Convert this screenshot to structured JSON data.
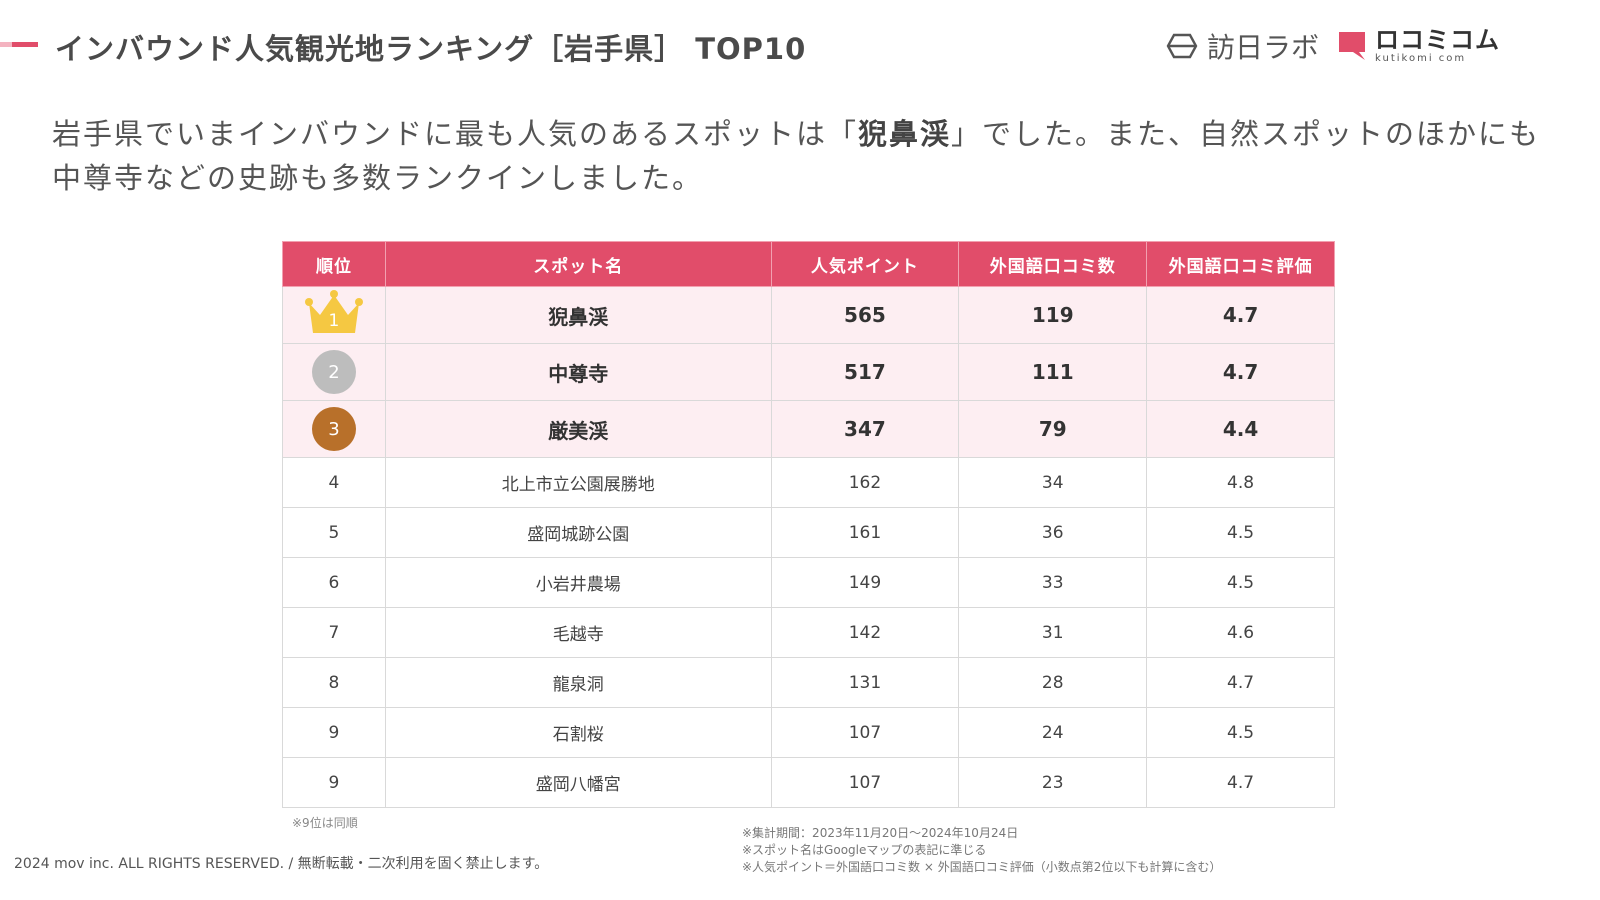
{
  "header": {
    "title": "インバウンド人気観光地ランキング［岩手県］ TOP10",
    "logo_homon": "訪日ラボ",
    "logo_kuchikomi": "ロコミコム",
    "logo_kuchikomi_sub": "kutikomi com"
  },
  "lead": {
    "text_before": "岩手県でいまインバウンドに最も人気のあるスポットは「",
    "highlight": "猊鼻渓",
    "text_after": "」でした。また、自然スポットのほかにも中尊寺などの史跡も多数ランクインしました。"
  },
  "table": {
    "headers": [
      "順位",
      "スポット名",
      "人気ポイント",
      "外国語口コミ数",
      "外国語口コミ評価"
    ],
    "rows": [
      {
        "rank": "1",
        "name": "猊鼻渓",
        "points": "565",
        "count": "119",
        "rating": "4.7"
      },
      {
        "rank": "2",
        "name": "中尊寺",
        "points": "517",
        "count": "111",
        "rating": "4.7"
      },
      {
        "rank": "3",
        "name": "厳美渓",
        "points": "347",
        "count": "79",
        "rating": "4.4"
      },
      {
        "rank": "4",
        "name": "北上市立公園展勝地",
        "points": "162",
        "count": "34",
        "rating": "4.8"
      },
      {
        "rank": "5",
        "name": "盛岡城跡公園",
        "points": "161",
        "count": "36",
        "rating": "4.5"
      },
      {
        "rank": "6",
        "name": "小岩井農場",
        "points": "149",
        "count": "33",
        "rating": "4.5"
      },
      {
        "rank": "7",
        "name": "毛越寺",
        "points": "142",
        "count": "31",
        "rating": "4.6"
      },
      {
        "rank": "8",
        "name": "龍泉洞",
        "points": "131",
        "count": "28",
        "rating": "4.7"
      },
      {
        "rank": "9",
        "name": "石割桜",
        "points": "107",
        "count": "24",
        "rating": "4.5"
      },
      {
        "rank": "9",
        "name": "盛岡八幡宮",
        "points": "107",
        "count": "23",
        "rating": "4.7"
      }
    ]
  },
  "notes": {
    "tie": "※9位は同順",
    "period": "※集計期間：2023年11月20日～2024年10月24日",
    "names": "※スポット名はGoogleマップの表記に準じる",
    "formula": "※人気ポイント＝外国語口コミ数 × 外国語口コミ評価（小数点第2位以下も計算に含む）"
  },
  "footer": {
    "copyright": "2024 mov inc. ALL RIGHTS RESERVED. / 無断転載・二次利用を固く禁止します。"
  },
  "colors": {
    "accent": "#e14d6a",
    "top_row_bg": "#fdeef2",
    "gold": "#f5c842",
    "silver": "#bdbdbd",
    "bronze": "#b8702a"
  }
}
